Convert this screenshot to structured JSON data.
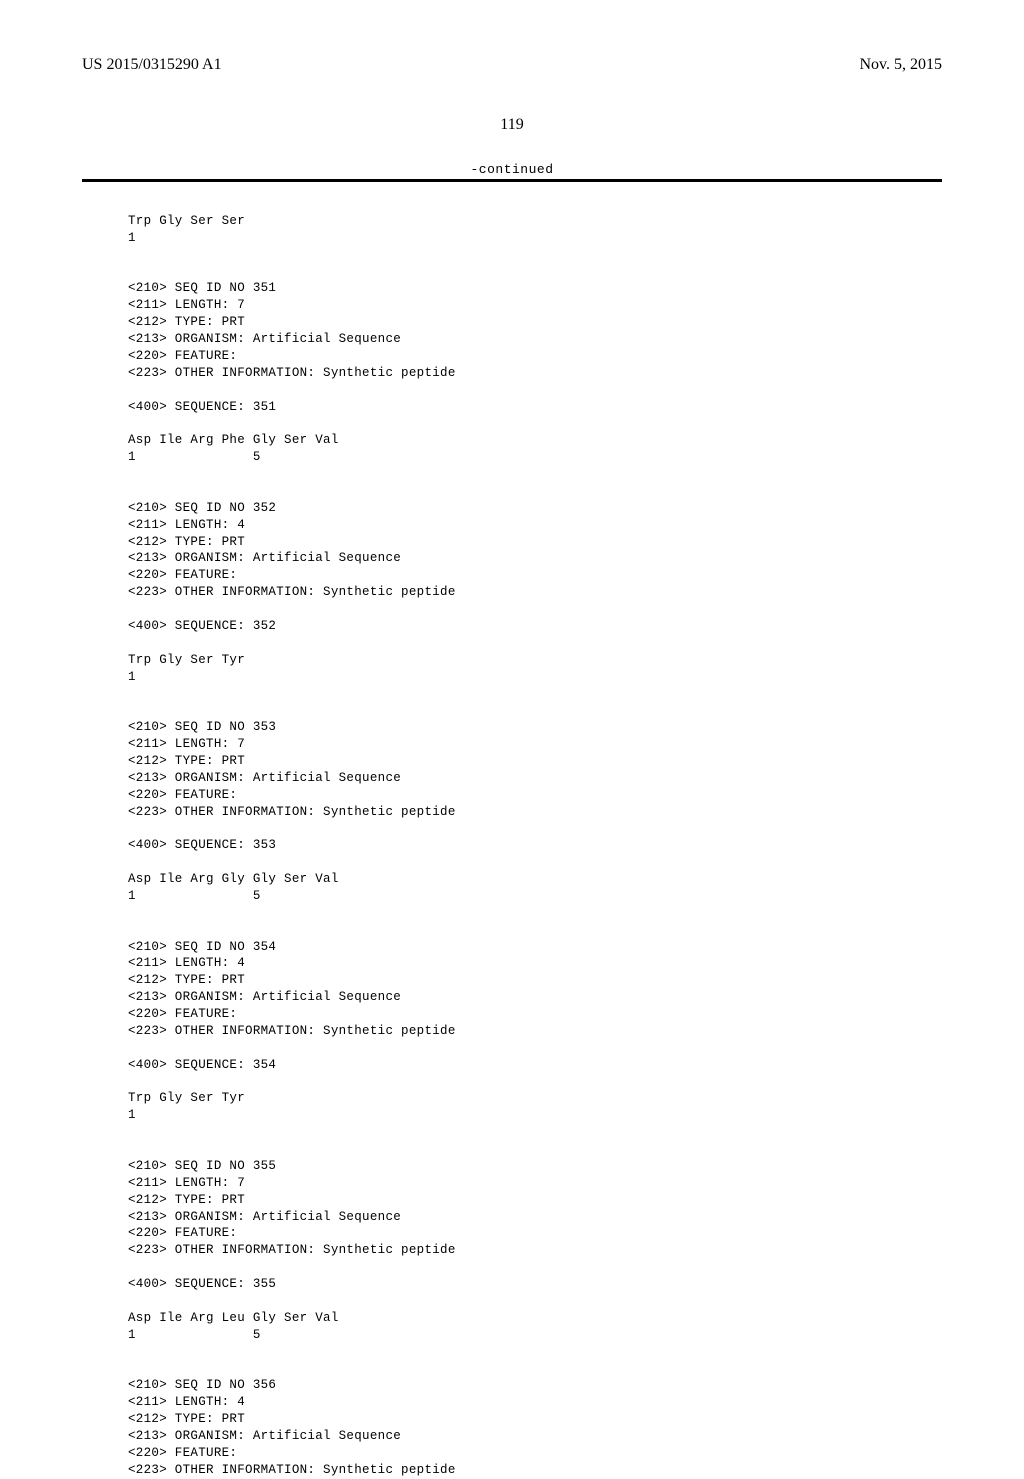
{
  "header": {
    "pub_number": "US 2015/0315290 A1",
    "pub_date": "Nov. 5, 2015"
  },
  "page_number": "119",
  "continued_label": "-continued",
  "sequences": [
    {
      "lines": [
        "Trp Gly Ser Ser",
        "1"
      ]
    },
    {
      "lines": [
        "<210> SEQ ID NO 351",
        "<211> LENGTH: 7",
        "<212> TYPE: PRT",
        "<213> ORGANISM: Artificial Sequence",
        "<220> FEATURE:",
        "<223> OTHER INFORMATION: Synthetic peptide",
        "",
        "<400> SEQUENCE: 351",
        "",
        "Asp Ile Arg Phe Gly Ser Val",
        "1               5"
      ]
    },
    {
      "lines": [
        "<210> SEQ ID NO 352",
        "<211> LENGTH: 4",
        "<212> TYPE: PRT",
        "<213> ORGANISM: Artificial Sequence",
        "<220> FEATURE:",
        "<223> OTHER INFORMATION: Synthetic peptide",
        "",
        "<400> SEQUENCE: 352",
        "",
        "Trp Gly Ser Tyr",
        "1"
      ]
    },
    {
      "lines": [
        "<210> SEQ ID NO 353",
        "<211> LENGTH: 7",
        "<212> TYPE: PRT",
        "<213> ORGANISM: Artificial Sequence",
        "<220> FEATURE:",
        "<223> OTHER INFORMATION: Synthetic peptide",
        "",
        "<400> SEQUENCE: 353",
        "",
        "Asp Ile Arg Gly Gly Ser Val",
        "1               5"
      ]
    },
    {
      "lines": [
        "<210> SEQ ID NO 354",
        "<211> LENGTH: 4",
        "<212> TYPE: PRT",
        "<213> ORGANISM: Artificial Sequence",
        "<220> FEATURE:",
        "<223> OTHER INFORMATION: Synthetic peptide",
        "",
        "<400> SEQUENCE: 354",
        "",
        "Trp Gly Ser Tyr",
        "1"
      ]
    },
    {
      "lines": [
        "<210> SEQ ID NO 355",
        "<211> LENGTH: 7",
        "<212> TYPE: PRT",
        "<213> ORGANISM: Artificial Sequence",
        "<220> FEATURE:",
        "<223> OTHER INFORMATION: Synthetic peptide",
        "",
        "<400> SEQUENCE: 355",
        "",
        "Asp Ile Arg Leu Gly Ser Val",
        "1               5"
      ]
    },
    {
      "lines": [
        "<210> SEQ ID NO 356",
        "<211> LENGTH: 4",
        "<212> TYPE: PRT",
        "<213> ORGANISM: Artificial Sequence",
        "<220> FEATURE:",
        "<223> OTHER INFORMATION: Synthetic peptide"
      ]
    }
  ]
}
